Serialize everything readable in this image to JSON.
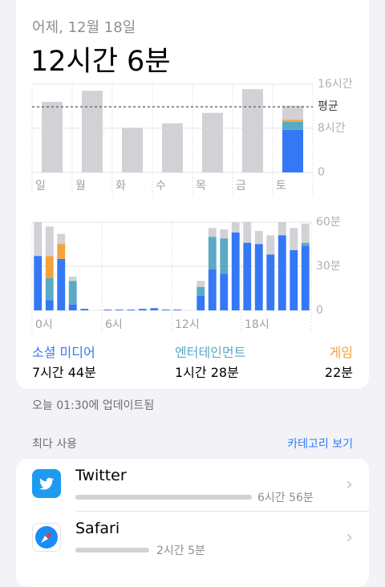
{
  "header": {
    "date": "어제, 12월 18일",
    "total": "12시간 6분"
  },
  "weekly_chart": {
    "type": "bar",
    "categories": [
      "일",
      "월",
      "화",
      "수",
      "목",
      "금",
      "토"
    ],
    "series": [
      {
        "name": "소셜 미디어",
        "color": "#3478f6",
        "values": [
          0,
          0,
          0,
          0,
          0,
          0,
          7.73
        ]
      },
      {
        "name": "엔터테인먼트",
        "color": "#5aaac6",
        "values": [
          0,
          0,
          0,
          0,
          0,
          0,
          1.47
        ]
      },
      {
        "name": "게임",
        "color": "#f2a33a",
        "values": [
          0,
          0,
          0,
          0,
          0,
          0,
          0.37
        ]
      },
      {
        "color": "#d1d1d6",
        "values": [
          12.8,
          14.8,
          8.1,
          8.9,
          10.8,
          15.1,
          2.53
        ]
      }
    ],
    "ylim": [
      0,
      16
    ],
    "yticks": [
      0,
      {
        "value": 8,
        "label": "8시간"
      },
      {
        "value": 16,
        "label": "16시간"
      }
    ],
    "average": {
      "value": 11.9,
      "label": "평균"
    },
    "grid": true
  },
  "hourly_chart": {
    "type": "bar",
    "categories": [
      "0시",
      null,
      null,
      null,
      null,
      null,
      "6시",
      null,
      null,
      null,
      null,
      null,
      "12시",
      null,
      null,
      null,
      null,
      null,
      "18시",
      null,
      null,
      null,
      null,
      null
    ],
    "series": [
      {
        "name": "소셜 미디어",
        "color": "#3478f6",
        "values": [
          37,
          7,
          35,
          4,
          1,
          0,
          0.5,
          0.5,
          0.5,
          1,
          1.5,
          0.5,
          0.5,
          0,
          10,
          28,
          25,
          53,
          46,
          45,
          38,
          51,
          41,
          44
        ]
      },
      {
        "name": "엔터테인먼트",
        "color": "#5aaac6",
        "values": [
          0,
          15,
          0,
          16,
          0,
          0,
          0,
          0,
          0,
          0,
          0,
          0,
          0,
          0,
          6,
          22,
          24,
          0,
          0,
          0,
          0,
          0,
          0,
          2
        ]
      },
      {
        "name": "게임",
        "color": "#f2a33a",
        "values": [
          0,
          15,
          10,
          0,
          0,
          0,
          0,
          0,
          0,
          0,
          0,
          0,
          0,
          0,
          0,
          0,
          0,
          0,
          0,
          0,
          0,
          0,
          0,
          0
        ]
      },
      {
        "color": "#d1d1d6",
        "values": [
          23,
          20,
          7,
          3,
          0,
          0,
          0,
          0,
          0,
          0,
          0,
          0,
          0,
          0,
          4,
          6,
          6,
          7,
          14,
          9,
          13,
          9,
          15,
          13
        ]
      }
    ],
    "ylim": [
      0,
      60
    ],
    "yticks": [
      0,
      {
        "value": 30,
        "label": "30분"
      },
      {
        "value": 60,
        "label": "60분"
      }
    ],
    "grid": true
  },
  "summary": [
    {
      "name": "소셜 미디어",
      "time": "7시간 44분",
      "color": "#3478f6"
    },
    {
      "name": "엔터테인먼트",
      "time": "1시간 28분",
      "color": "#5aaac6"
    },
    {
      "name": "게임",
      "time": "22분",
      "color": "#f2a33a"
    }
  ],
  "updated": "오늘 01:30에 업데이트됨",
  "most_used": {
    "title": "최다 사용",
    "link": "카테고리 보기",
    "apps": [
      {
        "name": "Twitter",
        "time": "6시간 56분"
      },
      {
        "name": "Safari",
        "time": "2시간 5분"
      }
    ]
  }
}
